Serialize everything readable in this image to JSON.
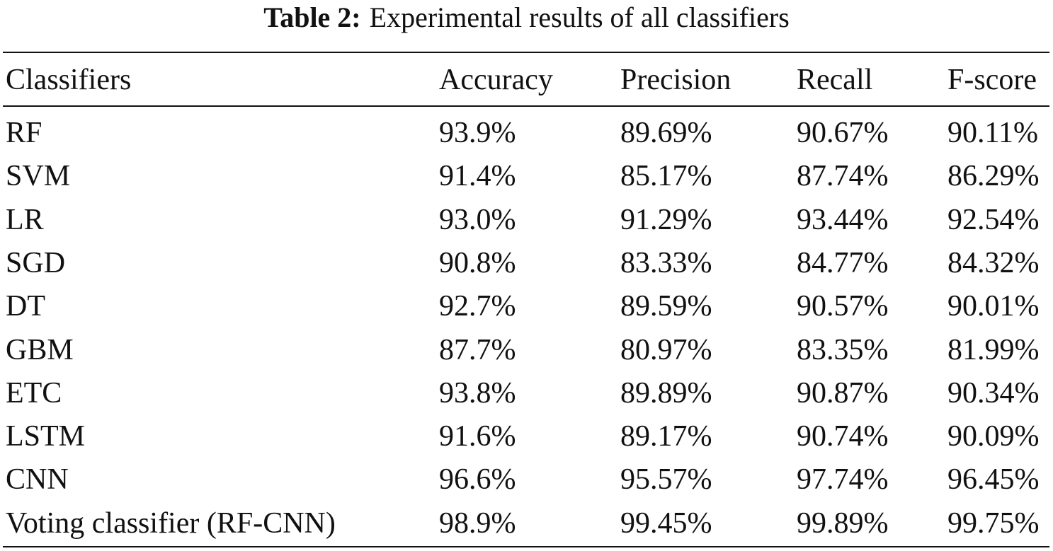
{
  "caption": {
    "label": "Table 2:",
    "text": "Experimental results of all classifiers"
  },
  "table": {
    "header": [
      "Classifiers",
      "Accuracy",
      "Precision",
      "Recall",
      "F-score"
    ],
    "rows": [
      [
        "RF",
        "93.9%",
        "89.69%",
        "90.67%",
        "90.11%"
      ],
      [
        "SVM",
        "91.4%",
        "85.17%",
        "87.74%",
        "86.29%"
      ],
      [
        "LR",
        "93.0%",
        "91.29%",
        "93.44%",
        "92.54%"
      ],
      [
        "SGD",
        "90.8%",
        "83.33%",
        "84.77%",
        "84.32%"
      ],
      [
        "DT",
        "92.7%",
        "89.59%",
        "90.57%",
        "90.01%"
      ],
      [
        "GBM",
        "87.7%",
        "80.97%",
        "83.35%",
        "81.99%"
      ],
      [
        "ETC",
        "93.8%",
        "89.89%",
        "90.87%",
        "90.34%"
      ],
      [
        "LSTM",
        "91.6%",
        "89.17%",
        "90.74%",
        "90.09%"
      ],
      [
        "CNN",
        "96.6%",
        "95.57%",
        "97.74%",
        "96.45%"
      ],
      [
        "Voting classifier (RF-CNN)",
        "98.9%",
        "99.45%",
        "99.89%",
        "99.75%"
      ]
    ]
  }
}
